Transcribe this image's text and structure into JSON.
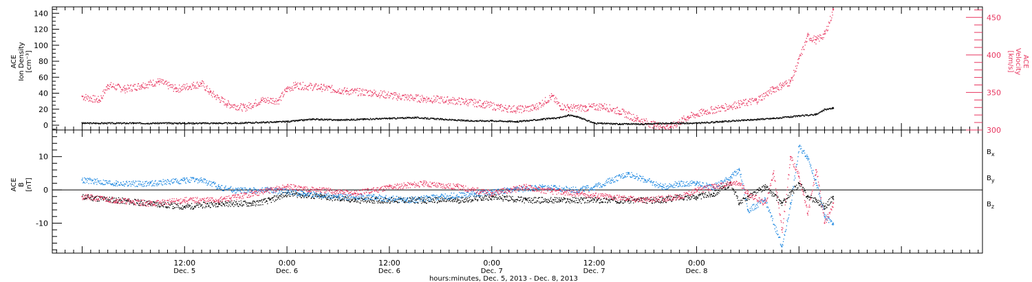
{
  "colors": {
    "density": "#000000",
    "velocity": "#e8355f",
    "bx": "#000000",
    "by": "#1a86e0",
    "bz": "#e8355f"
  },
  "chart_data": [
    {
      "type": "scatter",
      "panel": "top",
      "ylabel_lines": [
        "ACE",
        "Ion Density",
        "[cm⁻³]"
      ],
      "y2label_lines": [
        "ACE",
        "Velocity",
        "[km/s]"
      ],
      "ylim": [
        -6,
        148
      ],
      "yticks": [
        0,
        20,
        40,
        60,
        80,
        100,
        120,
        140
      ],
      "ytick_labels": [
        "0",
        "20",
        "40",
        "60",
        "80",
        "100",
        "120",
        "140"
      ],
      "y2lim": [
        300,
        464
      ],
      "y2ticks": [
        300,
        350,
        400,
        450
      ],
      "y2tick_labels": [
        "300",
        "350",
        "400",
        "450"
      ],
      "series": [
        {
          "key": "density",
          "axis": "left",
          "x": [
            0,
            6,
            12,
            18,
            24,
            27,
            30,
            33,
            36,
            39,
            42,
            45,
            48,
            51,
            54,
            56,
            57,
            58,
            60,
            63,
            66,
            69,
            72,
            75,
            78,
            81,
            84,
            86,
            87,
            88
          ],
          "y": [
            3,
            3,
            3,
            3,
            5,
            8,
            7,
            8,
            9,
            10,
            8,
            6,
            6,
            5,
            8,
            10,
            13,
            11,
            3,
            2,
            2,
            3,
            3,
            5,
            7,
            9,
            12,
            14,
            20,
            22
          ]
        },
        {
          "key": "velocity",
          "axis": "right",
          "x": [
            0,
            2,
            3,
            5,
            7,
            9,
            11,
            13,
            14,
            15,
            17,
            19,
            21,
            23,
            24,
            25,
            28,
            31,
            34,
            37,
            40,
            43,
            45,
            47,
            49,
            51,
            53,
            55,
            56,
            57,
            59,
            61,
            63,
            65,
            67,
            69,
            71,
            73,
            75,
            77,
            79,
            81,
            82,
            83,
            84,
            85,
            86,
            87,
            88
          ],
          "y": [
            345,
            340,
            360,
            355,
            360,
            365,
            355,
            360,
            362,
            350,
            335,
            330,
            340,
            340,
            355,
            360,
            357,
            352,
            350,
            345,
            342,
            340,
            338,
            335,
            330,
            328,
            330,
            345,
            332,
            330,
            330,
            332,
            325,
            315,
            307,
            305,
            318,
            325,
            330,
            335,
            340,
            355,
            360,
            365,
            395,
            425,
            420,
            428,
            460
          ]
        }
      ]
    },
    {
      "type": "scatter",
      "panel": "bottom",
      "ylabel_lines": [
        "ACE",
        "B",
        "[nT]"
      ],
      "ylim": [
        -19,
        18
      ],
      "yticks": [
        -10,
        0,
        10
      ],
      "ytick_labels": [
        "-10",
        "0",
        "10"
      ],
      "legend": [
        {
          "name": "B",
          "sub": "x",
          "key": "bx"
        },
        {
          "name": "B",
          "sub": "y",
          "key": "by"
        },
        {
          "name": "B",
          "sub": "z",
          "key": "bz"
        }
      ],
      "legend_position": "right",
      "series": [
        {
          "key": "bx",
          "x": [
            0,
            4,
            8,
            12,
            16,
            20,
            22,
            24,
            28,
            32,
            36,
            40,
            44,
            48,
            52,
            56,
            60,
            64,
            68,
            70,
            72,
            74,
            76,
            77,
            78,
            80,
            82,
            84,
            85,
            86,
            87,
            88
          ],
          "y": [
            -2,
            -3,
            -4,
            -5,
            -4,
            -4,
            -3,
            -1,
            -2,
            -3,
            -3,
            -3,
            -3,
            -2,
            -3,
            -3,
            -3,
            -3,
            -3,
            -2,
            -2,
            -1,
            2,
            -4,
            -2,
            1,
            -4,
            2,
            -2,
            -3,
            -5,
            -2
          ]
        },
        {
          "key": "by",
          "x": [
            0,
            4,
            8,
            12,
            14,
            16,
            18,
            22,
            26,
            30,
            34,
            38,
            42,
            46,
            50,
            54,
            58,
            60,
            62,
            64,
            66,
            68,
            70,
            72,
            74,
            76,
            77,
            78,
            80,
            82,
            83,
            84,
            85,
            86,
            87,
            88
          ],
          "y": [
            3,
            2,
            2,
            3,
            3,
            1,
            0,
            0,
            -1,
            -2,
            -2,
            -3,
            -2,
            -1,
            0,
            1,
            0,
            1,
            3,
            5,
            3,
            1,
            2,
            2,
            1,
            4,
            6,
            -6,
            -3,
            -17,
            -4,
            13,
            10,
            2,
            -8,
            -10
          ]
        },
        {
          "key": "bz",
          "x": [
            0,
            4,
            8,
            12,
            16,
            20,
            24,
            28,
            32,
            36,
            40,
            44,
            48,
            52,
            54,
            58,
            62,
            66,
            70,
            72,
            74,
            76,
            77,
            78,
            80,
            81,
            82,
            83,
            84,
            85,
            86,
            87,
            88
          ],
          "y": [
            -2,
            -3,
            -4,
            -3,
            -3,
            -1,
            1,
            0,
            -1,
            1,
            2,
            1,
            -1,
            1,
            0,
            -1,
            -2,
            -3,
            -2,
            0,
            1,
            2,
            2,
            -1,
            -4,
            5,
            -12,
            10,
            4,
            -7,
            6,
            -10,
            -4
          ]
        }
      ]
    }
  ],
  "xaxis": {
    "xlim": [
      -3.5,
      105.5
    ],
    "major_ticks": [
      {
        "x": 12,
        "time": "12:00",
        "date": "Dec. 5"
      },
      {
        "x": 24,
        "time": "0:00",
        "date": "Dec. 6"
      },
      {
        "x": 36,
        "time": "12:00",
        "date": "Dec. 6"
      },
      {
        "x": 48,
        "time": "0:00",
        "date": "Dec. 7"
      },
      {
        "x": 60,
        "time": "12:00",
        "date": "Dec. 7"
      },
      {
        "x": 72,
        "time": "0:00",
        "date": "Dec. 8"
      }
    ],
    "xlabel": "hours:minutes, Dec.  5, 2013 - Dec.  8, 2013"
  }
}
